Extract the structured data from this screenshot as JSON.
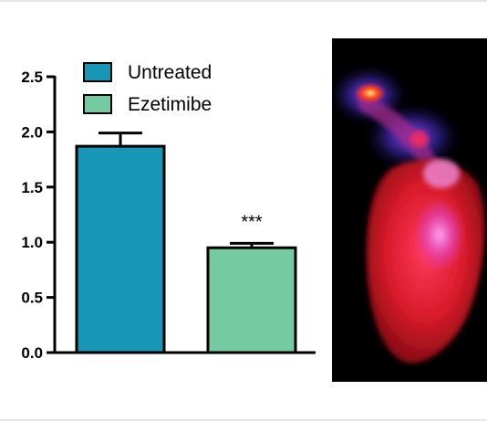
{
  "chart_data": {
    "type": "bar",
    "categories": [
      "Untreated",
      "Ezetimibe"
    ],
    "values": [
      1.87,
      0.95
    ],
    "errors": [
      0.12,
      0.04
    ],
    "significance": [
      "",
      "***"
    ],
    "colors": [
      "#1797b5",
      "#74cba2"
    ],
    "legend": [
      "Untreated",
      "Ezetimibe"
    ],
    "legend_position": "top",
    "ylim": [
      0,
      2.5
    ],
    "yticks": [
      "0.0",
      "0.5",
      "1.0",
      "1.5",
      "2.0",
      "2.5"
    ],
    "title": "",
    "xlabel": "",
    "ylabel": "",
    "grid": false
  },
  "photo": {
    "icon": "fluorescent-heart-image"
  }
}
